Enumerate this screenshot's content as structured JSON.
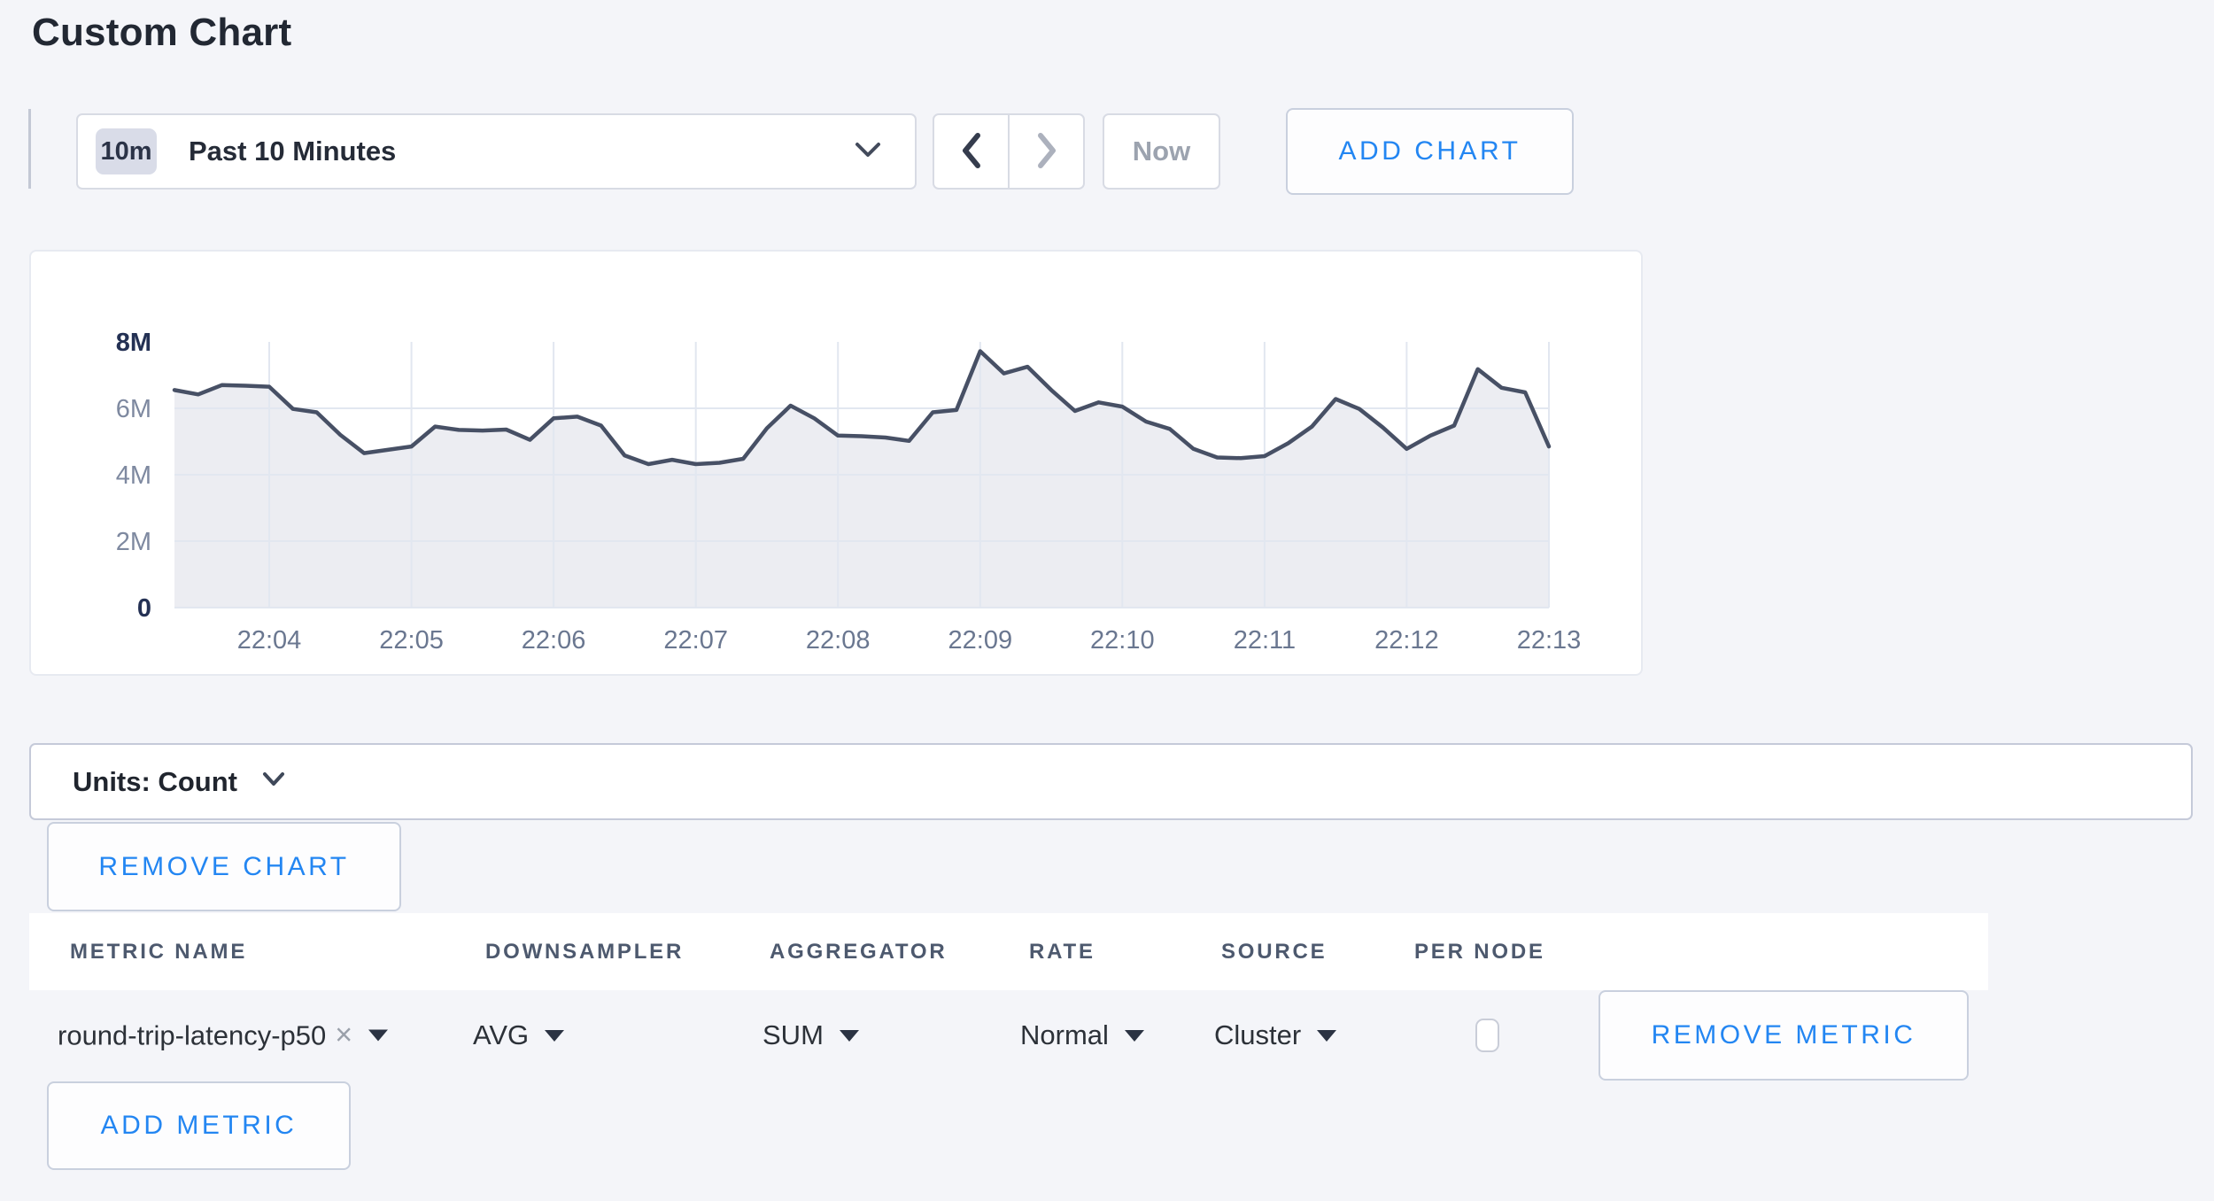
{
  "page": {
    "title": "Custom Chart"
  },
  "toolbar": {
    "range_badge": "10m",
    "range_label": "Past 10 Minutes",
    "now_label": "Now",
    "add_chart_label": "ADD CHART",
    "icons": {
      "dropdown": "chevron-down",
      "prev": "chevron-left",
      "next": "chevron-right"
    }
  },
  "chart_data": {
    "type": "area",
    "title": "",
    "xlabel": "",
    "ylabel": "",
    "x_start": "22:03:20",
    "x_step_seconds": 10,
    "xticklabels": [
      "22:04",
      "22:05",
      "22:06",
      "22:07",
      "22:08",
      "22:09",
      "22:10",
      "22:11",
      "22:12",
      "22:13"
    ],
    "first_tick_index": 4,
    "points_per_tick": 6,
    "values_millions": [
      6.55,
      6.42,
      6.7,
      6.68,
      6.65,
      5.98,
      5.88,
      5.2,
      4.65,
      4.75,
      4.85,
      5.45,
      5.35,
      5.33,
      5.36,
      5.05,
      5.7,
      5.75,
      5.48,
      4.58,
      4.32,
      4.45,
      4.32,
      4.36,
      4.48,
      5.4,
      6.08,
      5.7,
      5.18,
      5.16,
      5.12,
      5.02,
      5.88,
      5.95,
      7.72,
      7.05,
      7.25,
      6.55,
      5.92,
      6.18,
      6.05,
      5.6,
      5.38,
      4.78,
      4.52,
      4.5,
      4.56,
      4.95,
      5.45,
      6.28,
      5.98,
      5.42,
      4.78,
      5.18,
      5.48,
      7.18,
      6.62,
      6.48,
      4.85
    ],
    "ylim_millions": [
      0,
      8
    ],
    "yticks": [
      {
        "label": "0",
        "value_millions": 0,
        "strong": true,
        "grid": false
      },
      {
        "label": "2M",
        "value_millions": 2,
        "strong": false,
        "grid": true
      },
      {
        "label": "4M",
        "value_millions": 4,
        "strong": false,
        "grid": true
      },
      {
        "label": "6M",
        "value_millions": 6,
        "strong": false,
        "grid": true
      },
      {
        "label": "8M",
        "value_millions": 8,
        "strong": true,
        "grid": false
      }
    ],
    "grid": true,
    "legend": "none",
    "line_color": "#475065",
    "fill_color": "#ecedf2",
    "grid_color": "#e2e7f0"
  },
  "units_bar": {
    "label": "Units: Count"
  },
  "chart_actions": {
    "remove_chart_label": "REMOVE CHART"
  },
  "metrics_table": {
    "headers": [
      "METRIC NAME",
      "DOWNSAMPLER",
      "AGGREGATOR",
      "RATE",
      "SOURCE",
      "PER NODE"
    ],
    "rows": [
      {
        "metric_name": "round-trip-latency-p50",
        "remove_tag_icon": "x",
        "downsampler": "AVG",
        "aggregator": "SUM",
        "rate": "Normal",
        "source": "Cluster",
        "per_node_checked": false,
        "remove_label": "REMOVE METRIC"
      }
    ],
    "add_metric_label": "ADD METRIC"
  },
  "colors": {
    "accent_blue": "#2386f2",
    "page_background": "#f4f5f9",
    "card_background": "#ffffff",
    "muted_text": "#9ca3af",
    "dark_text": "#252b37"
  }
}
